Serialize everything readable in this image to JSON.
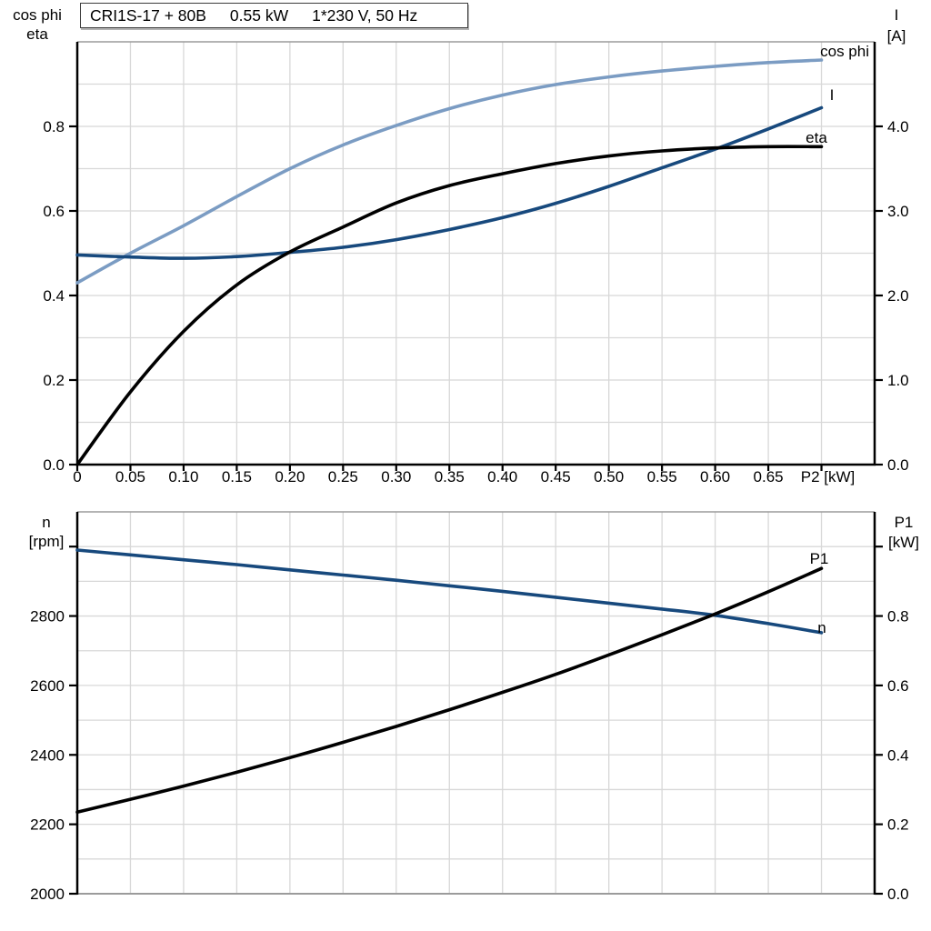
{
  "title": {
    "model": "CRI1S-17 + 80B",
    "power": "0.55 kW",
    "supply": "1*230 V, 50 Hz"
  },
  "colors": {
    "cos_phi_blue": "#7B9CC3",
    "dark_blue": "#17497D",
    "black": "#000000",
    "grid": "#D8D8D8",
    "frame": "#9B9B9B"
  },
  "chart_data": [
    {
      "type": "line",
      "name": "motor-electrical-curves",
      "x": [
        0,
        0.05,
        0.1,
        0.15,
        0.2,
        0.25,
        0.3,
        0.35,
        0.4,
        0.45,
        0.5,
        0.55,
        0.6,
        0.65,
        0.7
      ],
      "xlim": [
        0,
        0.75
      ],
      "x_grid_step": 0.05,
      "xlabel": "P2 [kW]",
      "xlabel_at": 0.7,
      "x_tick_labels": [
        {
          "v": 0,
          "t": "0"
        },
        {
          "v": 0.05,
          "t": "0.05"
        },
        {
          "v": 0.1,
          "t": "0.10"
        },
        {
          "v": 0.15,
          "t": "0.15"
        },
        {
          "v": 0.2,
          "t": "0.20"
        },
        {
          "v": 0.25,
          "t": "0.25"
        },
        {
          "v": 0.3,
          "t": "0.30"
        },
        {
          "v": 0.35,
          "t": "0.35"
        },
        {
          "v": 0.4,
          "t": "0.40"
        },
        {
          "v": 0.45,
          "t": "0.45"
        },
        {
          "v": 0.5,
          "t": "0.50"
        },
        {
          "v": 0.55,
          "t": "0.55"
        },
        {
          "v": 0.6,
          "t": "0.60"
        },
        {
          "v": 0.65,
          "t": "0.65"
        }
      ],
      "left_axis": {
        "title_lines": [
          "cos phi",
          "eta"
        ],
        "lim": [
          0,
          1.0
        ],
        "grid_step": 0.1,
        "ticks": [
          {
            "v": 0,
            "t": "0.0"
          },
          {
            "v": 0.2,
            "t": "0.2"
          },
          {
            "v": 0.4,
            "t": "0.4"
          },
          {
            "v": 0.6,
            "t": "0.6"
          },
          {
            "v": 0.8,
            "t": "0.8"
          }
        ],
        "extra_tick_values": []
      },
      "right_axis": {
        "title_lines": [
          "I",
          "[A]"
        ],
        "lim": [
          0,
          5.0
        ],
        "ticks": [
          {
            "v": 0,
            "t": "0.0"
          },
          {
            "v": 1,
            "t": "1.0"
          },
          {
            "v": 2,
            "t": "2.0"
          },
          {
            "v": 3,
            "t": "3.0"
          },
          {
            "v": 4,
            "t": "4.0"
          }
        ],
        "extra_tick_values": []
      },
      "series": [
        {
          "name": "cos phi",
          "axis": "left",
          "color": "cos_phi_blue",
          "values": [
            0.43,
            0.5,
            0.565,
            0.634,
            0.7,
            0.756,
            0.802,
            0.842,
            0.874,
            0.899,
            0.917,
            0.931,
            0.942,
            0.951,
            0.957
          ]
        },
        {
          "name": "I",
          "axis": "right",
          "color": "dark_blue",
          "values": [
            2.48,
            2.455,
            2.44,
            2.46,
            2.51,
            2.57,
            2.66,
            2.78,
            2.92,
            3.09,
            3.29,
            3.51,
            3.73,
            3.97,
            4.22
          ]
        },
        {
          "name": "eta",
          "axis": "left",
          "color": "black",
          "values": [
            0.0,
            0.172,
            0.315,
            0.425,
            0.503,
            0.562,
            0.619,
            0.66,
            0.688,
            0.712,
            0.73,
            0.742,
            0.749,
            0.752,
            0.752
          ]
        }
      ]
    },
    {
      "type": "line",
      "name": "speed-and-input-power-curves",
      "x": [
        0,
        0.05,
        0.1,
        0.15,
        0.2,
        0.25,
        0.3,
        0.35,
        0.4,
        0.45,
        0.5,
        0.55,
        0.6,
        0.65,
        0.7
      ],
      "xlim": [
        0,
        0.75
      ],
      "x_grid_step": 0.05,
      "xlabel": "",
      "x_tick_labels": [],
      "left_axis": {
        "title_lines": [
          "n",
          "[rpm]"
        ],
        "lim": [
          2000,
          3100
        ],
        "grid_step": 100,
        "ticks": [
          {
            "v": 2000,
            "t": "2000"
          },
          {
            "v": 2200,
            "t": "2200"
          },
          {
            "v": 2400,
            "t": "2400"
          },
          {
            "v": 2600,
            "t": "2600"
          },
          {
            "v": 2800,
            "t": "2800"
          }
        ],
        "extra_tick_values": [
          3000
        ]
      },
      "right_axis": {
        "title_lines": [
          "P1",
          "[kW]"
        ],
        "lim": [
          0,
          1.1
        ],
        "ticks": [
          {
            "v": 0,
            "t": "0.0"
          },
          {
            "v": 0.2,
            "t": "0.2"
          },
          {
            "v": 0.4,
            "t": "0.4"
          },
          {
            "v": 0.6,
            "t": "0.6"
          },
          {
            "v": 0.8,
            "t": "0.8"
          }
        ],
        "extra_tick_values": [
          1.0
        ]
      },
      "series": [
        {
          "name": "n",
          "axis": "left",
          "color": "dark_blue",
          "values": [
            2990,
            2976,
            2962,
            2948,
            2933,
            2918,
            2903,
            2887,
            2871,
            2854,
            2837,
            2820,
            2802,
            2778,
            2752
          ]
        },
        {
          "name": "P1",
          "axis": "right",
          "color": "black",
          "values": [
            0.235,
            0.272,
            0.31,
            0.35,
            0.392,
            0.436,
            0.482,
            0.53,
            0.58,
            0.632,
            0.688,
            0.746,
            0.806,
            0.87,
            0.937
          ]
        }
      ]
    }
  ]
}
